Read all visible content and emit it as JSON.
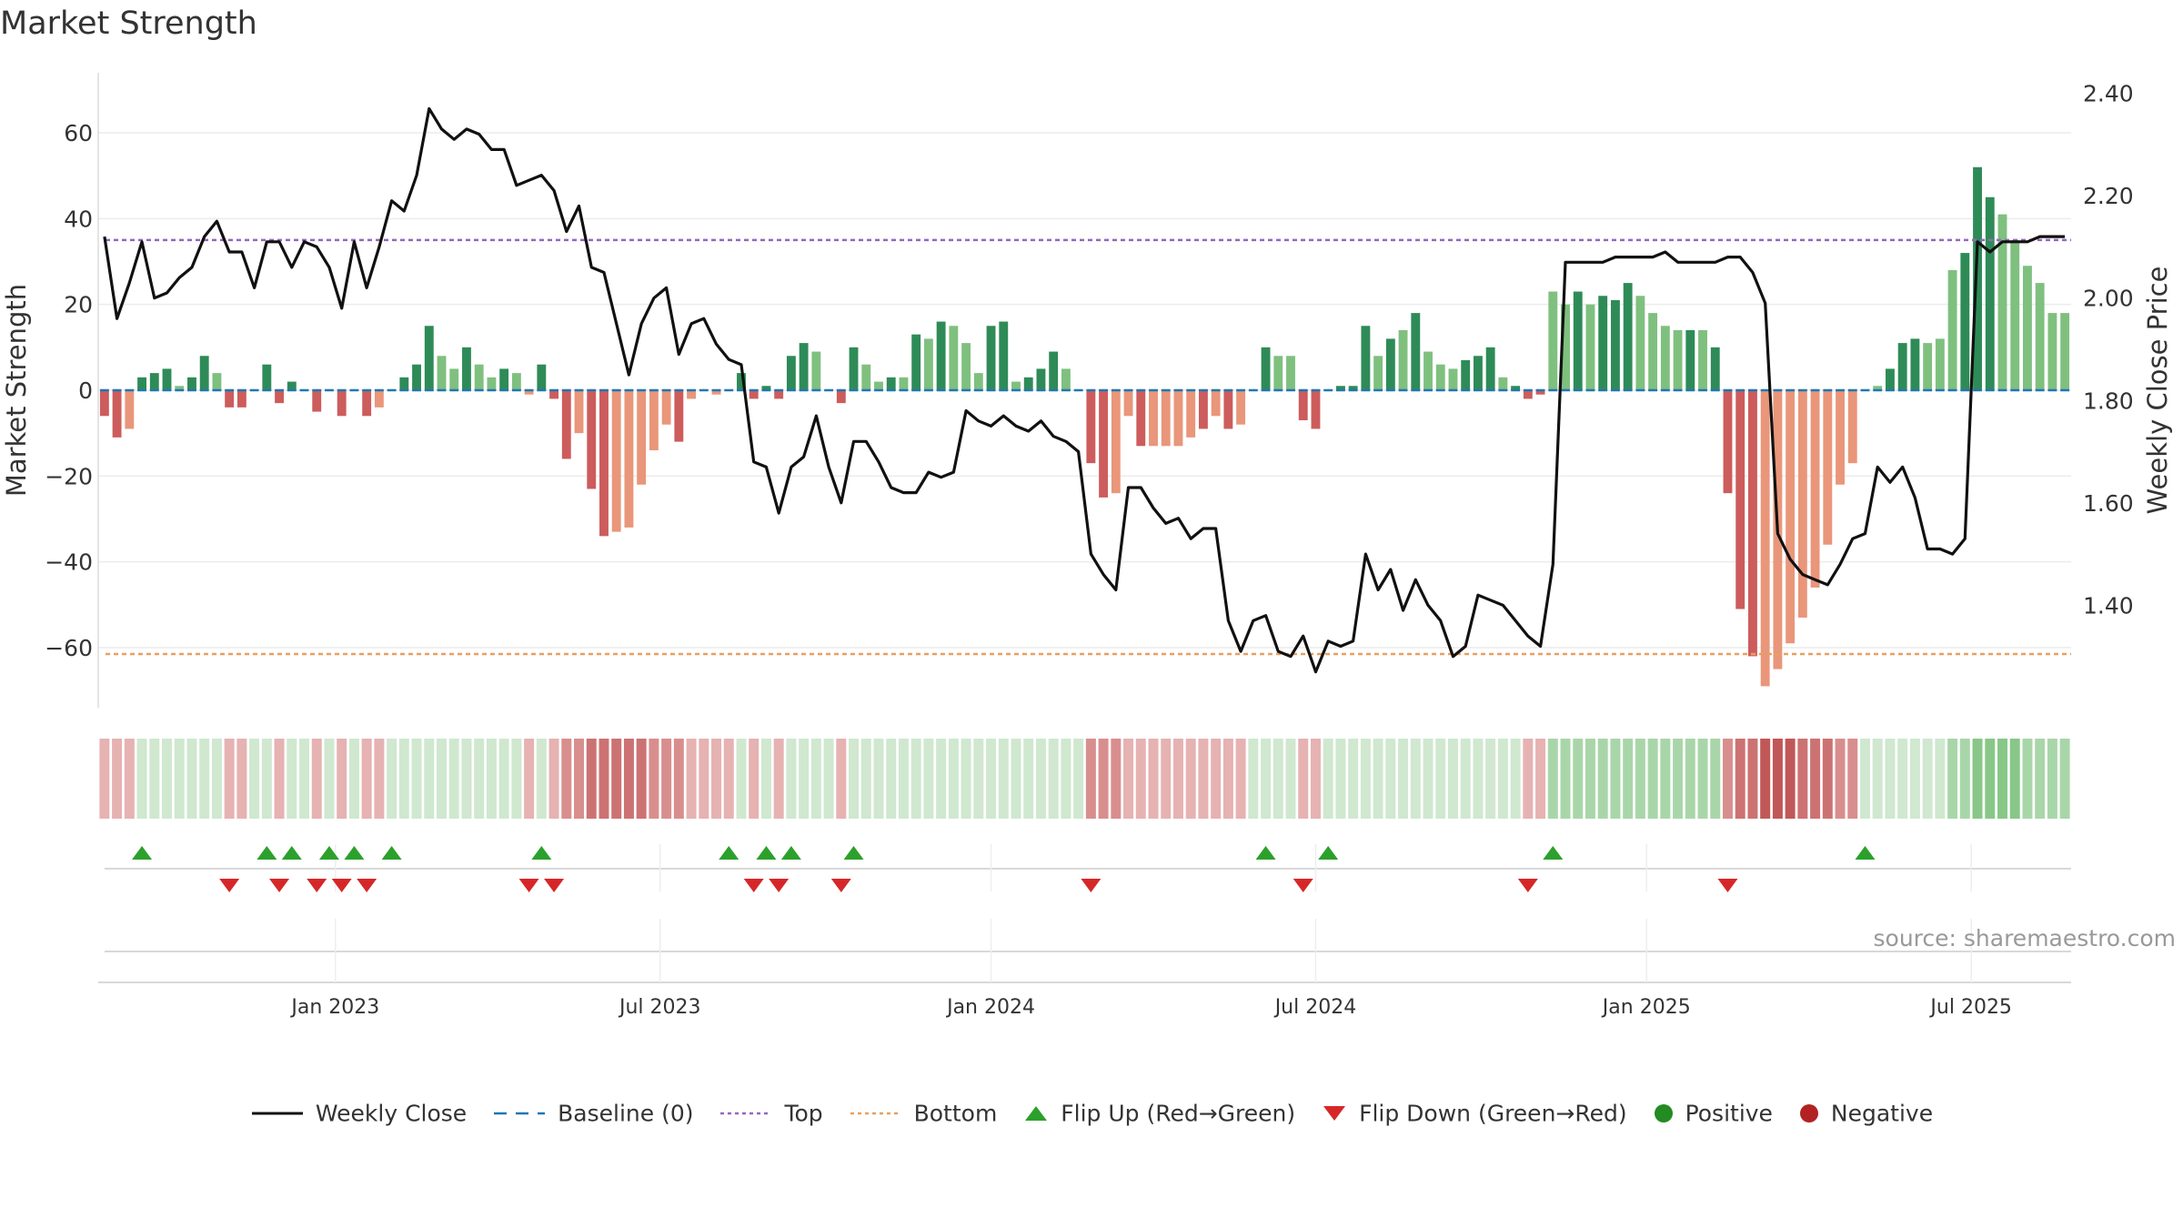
{
  "title": "Market Strength",
  "source": "source: sharemaestro.com",
  "colors": {
    "price_line": "#111111",
    "baseline": "#1f77b4",
    "top": "#9467bd",
    "bottom": "#e8a060",
    "pos_strong": "#2e8b57",
    "pos_weak": "#7fc07f",
    "neg_strong": "#cd5c5c",
    "neg_weak": "#e9967a",
    "flip_up": "#2ca02c",
    "flip_down": "#d62728",
    "positive": "#228b22",
    "negative": "#b22222"
  },
  "legend": [
    {
      "key": "weekly_close",
      "label": "Weekly Close",
      "icon": "line-solid-icon"
    },
    {
      "key": "baseline",
      "label": "Baseline (0)",
      "icon": "line-dashed-icon"
    },
    {
      "key": "top",
      "label": "Top",
      "icon": "line-dotted-icon"
    },
    {
      "key": "bottom",
      "label": "Bottom",
      "icon": "line-dotted-icon"
    },
    {
      "key": "flip_up",
      "label": "Flip Up (Red→Green)",
      "icon": "triangle-up-icon"
    },
    {
      "key": "flip_down",
      "label": "Flip Down (Green→Red)",
      "icon": "triangle-down-icon"
    },
    {
      "key": "positive",
      "label": "Positive",
      "icon": "circle-icon"
    },
    {
      "key": "negative",
      "label": "Negative",
      "icon": "circle-icon"
    }
  ],
  "chart_data": {
    "type": "bar",
    "title": "Market Strength",
    "ylabel": "Market Strength",
    "y2label": "Weekly Close Price",
    "ylim": [
      -74,
      74
    ],
    "y2lim": [
      1.2,
      2.44
    ],
    "yticks": [
      60,
      40,
      20,
      0,
      -20,
      -40,
      -60
    ],
    "ytick_labels": [
      "60",
      "40",
      "20",
      "0",
      "−20",
      "−40",
      "−60"
    ],
    "y2ticks": [
      2.4,
      2.2,
      2.0,
      1.8,
      1.6,
      1.4
    ],
    "y2tick_labels": [
      "2.40",
      "2.20",
      "2.00",
      "1.80",
      "1.60",
      "1.40"
    ],
    "xticks": [
      {
        "label": "Jan 2023",
        "week": 19
      },
      {
        "label": "Jul 2023",
        "week": 45
      },
      {
        "label": "Jan 2024",
        "week": 71.5
      },
      {
        "label": "Jul 2024",
        "week": 97.5
      },
      {
        "label": "Jan 2025",
        "week": 124
      },
      {
        "label": "Jul 2025",
        "week": 150
      }
    ],
    "top_line": 35,
    "bottom_line": -61.5,
    "grid": true,
    "legend_position": "bottom",
    "strength": [
      -6,
      -11,
      -9,
      3,
      4,
      5,
      1,
      3,
      8,
      4,
      -4,
      -4,
      0,
      6,
      -3,
      2,
      0,
      -5,
      0,
      -6,
      0,
      -6,
      -4,
      0,
      3,
      6,
      15,
      8,
      5,
      10,
      6,
      3,
      5,
      4,
      -1,
      6,
      -2,
      -16,
      -10,
      -23,
      -34,
      -33,
      -32,
      -22,
      -14,
      -8,
      -12,
      -2,
      0,
      -1,
      0,
      4,
      -2,
      1,
      -2,
      8,
      11,
      9,
      0,
      -3,
      10,
      6,
      2,
      3,
      3,
      13,
      12,
      16,
      15,
      11,
      4,
      15,
      16,
      2,
      3,
      5,
      9,
      5,
      0,
      -17,
      -25,
      -24,
      -6,
      -13,
      -13,
      -13,
      -13,
      -11,
      -9,
      -6,
      -9,
      -8,
      0,
      10,
      8,
      8,
      -7,
      -9,
      0,
      1,
      1,
      15,
      8,
      12,
      14,
      18,
      9,
      6,
      5,
      7,
      8,
      10,
      3,
      1,
      -2,
      -1,
      23,
      20,
      23,
      20,
      22,
      21,
      25,
      22,
      18,
      15,
      14,
      14,
      14,
      10,
      -24,
      -51,
      -62,
      -69,
      -65,
      -59,
      -53,
      -46,
      -36,
      -22,
      -17,
      0,
      1,
      5,
      11,
      12,
      11,
      12,
      28,
      32,
      52,
      45,
      41,
      35,
      29,
      25,
      18,
      18
    ],
    "strength_strong": [
      true,
      true,
      false,
      true,
      true,
      true,
      false,
      true,
      true,
      false,
      true,
      true,
      false,
      true,
      true,
      true,
      false,
      true,
      false,
      true,
      false,
      true,
      false,
      false,
      true,
      true,
      true,
      false,
      false,
      true,
      false,
      false,
      true,
      false,
      false,
      true,
      true,
      true,
      false,
      true,
      true,
      false,
      false,
      false,
      false,
      false,
      true,
      false,
      false,
      false,
      false,
      true,
      true,
      true,
      true,
      true,
      true,
      false,
      false,
      true,
      true,
      false,
      false,
      true,
      false,
      true,
      false,
      true,
      false,
      false,
      false,
      true,
      true,
      false,
      true,
      true,
      true,
      false,
      false,
      true,
      true,
      false,
      false,
      true,
      false,
      false,
      false,
      false,
      true,
      false,
      true,
      false,
      false,
      true,
      false,
      false,
      true,
      true,
      false,
      true,
      true,
      true,
      false,
      true,
      false,
      true,
      false,
      false,
      false,
      true,
      true,
      true,
      false,
      true,
      true,
      true,
      false,
      false,
      true,
      false,
      true,
      true,
      true,
      false,
      false,
      false,
      false,
      true,
      false,
      true,
      true,
      true,
      true,
      false,
      false,
      false,
      false,
      false,
      false,
      false,
      false,
      true,
      false,
      true,
      true,
      true,
      false,
      false,
      false,
      true,
      true,
      true,
      false,
      false,
      false,
      false,
      false,
      false,
      false
    ],
    "close": [
      2.12,
      1.96,
      2.03,
      2.11,
      2.0,
      2.01,
      2.04,
      2.06,
      2.12,
      2.15,
      2.09,
      2.09,
      2.02,
      2.11,
      2.11,
      2.06,
      2.11,
      2.1,
      2.06,
      1.98,
      2.11,
      2.02,
      2.1,
      2.19,
      2.17,
      2.24,
      2.37,
      2.33,
      2.31,
      2.33,
      2.32,
      2.29,
      2.29,
      2.22,
      2.23,
      2.24,
      2.21,
      2.13,
      2.18,
      2.06,
      2.05,
      1.95,
      1.85,
      1.95,
      2.0,
      2.02,
      1.89,
      1.95,
      1.96,
      1.91,
      1.88,
      1.87,
      1.68,
      1.67,
      1.58,
      1.67,
      1.69,
      1.77,
      1.67,
      1.6,
      1.72,
      1.72,
      1.68,
      1.63,
      1.62,
      1.62,
      1.66,
      1.65,
      1.66,
      1.78,
      1.76,
      1.75,
      1.77,
      1.75,
      1.74,
      1.76,
      1.73,
      1.72,
      1.7,
      1.5,
      1.46,
      1.43,
      1.63,
      1.63,
      1.59,
      1.56,
      1.57,
      1.53,
      1.55,
      1.55,
      1.37,
      1.31,
      1.37,
      1.38,
      1.31,
      1.3,
      1.34,
      1.27,
      1.33,
      1.32,
      1.33,
      1.5,
      1.43,
      1.47,
      1.39,
      1.45,
      1.4,
      1.37,
      1.3,
      1.32,
      1.42,
      1.41,
      1.4,
      1.37,
      1.34,
      1.32,
      1.48,
      2.07,
      2.07,
      2.07,
      2.07,
      2.08,
      2.08,
      2.08,
      2.08,
      2.09,
      2.07,
      2.07,
      2.07,
      2.07,
      2.08,
      2.08,
      2.05,
      1.99,
      1.54,
      1.49,
      1.46,
      1.45,
      1.44,
      1.48,
      1.53,
      1.54,
      1.67,
      1.64,
      1.67,
      1.61,
      1.51,
      1.51,
      1.5,
      1.53,
      2.11,
      2.09,
      2.11,
      2.11,
      2.11,
      2.12,
      2.12,
      2.12
    ],
    "band_intensity": [
      1,
      1,
      1,
      0,
      0,
      0,
      0,
      0,
      0,
      0,
      1,
      1,
      0,
      0,
      1,
      0,
      0,
      1,
      0,
      1,
      0,
      1,
      1,
      0,
      0,
      0,
      0,
      0,
      0,
      0,
      0,
      0,
      0,
      0,
      1,
      0,
      1,
      2,
      2,
      3,
      3,
      3,
      3,
      3,
      2,
      2,
      2,
      1,
      1,
      1,
      1,
      0,
      1,
      0,
      1,
      0,
      0,
      0,
      0,
      1,
      0,
      0,
      0,
      0,
      0,
      0,
      0,
      0,
      0,
      0,
      0,
      0,
      0,
      0,
      0,
      0,
      0,
      0,
      0,
      2,
      2,
      2,
      1,
      1,
      1,
      1,
      1,
      1,
      1,
      1,
      1,
      1,
      0,
      0,
      0,
      0,
      1,
      1,
      0,
      0,
      0,
      0,
      0,
      0,
      0,
      0,
      0,
      0,
      0,
      0,
      0,
      0,
      0,
      0,
      1,
      1,
      1,
      1,
      1,
      1,
      1,
      1,
      1,
      1,
      1,
      1,
      1,
      1,
      1,
      1,
      2,
      3,
      3,
      4,
      4,
      4,
      3,
      3,
      3,
      2,
      2,
      0,
      0,
      0,
      0,
      0,
      0,
      0,
      1,
      1,
      2,
      2,
      2,
      2,
      1,
      1,
      1,
      1
    ],
    "band_sign": [
      "neg",
      "neg",
      "neg",
      "pos",
      "pos",
      "pos",
      "pos",
      "pos",
      "pos",
      "pos",
      "neg",
      "neg",
      "pos",
      "pos",
      "neg",
      "pos",
      "pos",
      "neg",
      "pos",
      "neg",
      "pos",
      "neg",
      "neg",
      "pos",
      "pos",
      "pos",
      "pos",
      "pos",
      "pos",
      "pos",
      "pos",
      "pos",
      "pos",
      "pos",
      "neg",
      "pos",
      "neg",
      "neg",
      "neg",
      "neg",
      "neg",
      "neg",
      "neg",
      "neg",
      "neg",
      "neg",
      "neg",
      "neg",
      "neg",
      "neg",
      "neg",
      "pos",
      "neg",
      "pos",
      "neg",
      "pos",
      "pos",
      "pos",
      "pos",
      "neg",
      "pos",
      "pos",
      "pos",
      "pos",
      "pos",
      "pos",
      "pos",
      "pos",
      "pos",
      "pos",
      "pos",
      "pos",
      "pos",
      "pos",
      "pos",
      "pos",
      "pos",
      "pos",
      "pos",
      "neg",
      "neg",
      "neg",
      "neg",
      "neg",
      "neg",
      "neg",
      "neg",
      "neg",
      "neg",
      "neg",
      "neg",
      "neg",
      "pos",
      "pos",
      "pos",
      "pos",
      "neg",
      "neg",
      "pos",
      "pos",
      "pos",
      "pos",
      "pos",
      "pos",
      "pos",
      "pos",
      "pos",
      "pos",
      "pos",
      "pos",
      "pos",
      "pos",
      "pos",
      "pos",
      "neg",
      "neg",
      "pos",
      "pos",
      "pos",
      "pos",
      "pos",
      "pos",
      "pos",
      "pos",
      "pos",
      "pos",
      "pos",
      "pos",
      "pos",
      "pos",
      "neg",
      "neg",
      "neg",
      "neg",
      "neg",
      "neg",
      "neg",
      "neg",
      "neg",
      "neg",
      "neg",
      "pos",
      "pos",
      "pos",
      "pos",
      "pos",
      "pos",
      "pos",
      "pos",
      "pos",
      "pos",
      "pos",
      "pos",
      "pos",
      "pos",
      "pos",
      "pos",
      "pos"
    ],
    "flip_up_weeks": [
      3,
      13,
      15,
      18,
      20,
      23,
      35,
      50,
      53,
      55,
      60,
      93,
      98,
      116,
      141
    ],
    "flip_down_weeks": [
      10,
      14,
      17,
      19,
      21,
      34,
      36,
      52,
      54,
      59,
      79,
      96,
      114,
      130
    ]
  }
}
